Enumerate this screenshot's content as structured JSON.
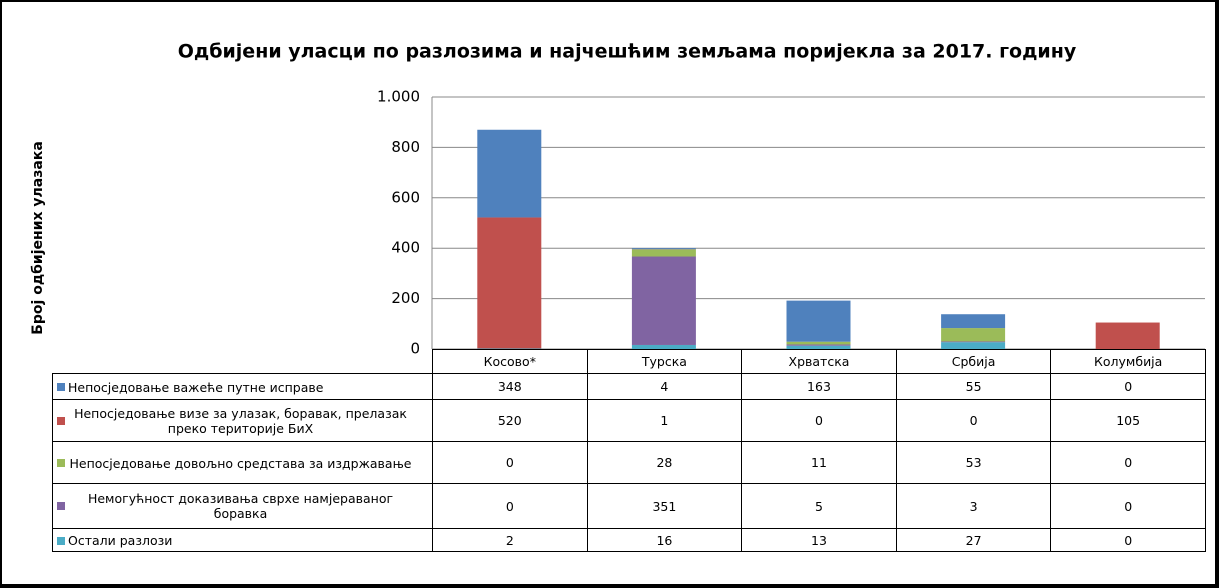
{
  "chart_data": {
    "type": "bar",
    "stacked": true,
    "title": "Одбијени уласци по разлозима и најчешћим земљама поријекла за  2017. годину",
    "y_label": "Број одбијених улазака",
    "categories": [
      "Косово*",
      "Турска",
      "Хрватска",
      "Србија",
      "Колумбија"
    ],
    "series": [
      {
        "name": "Непосједовање важеће путне исправе",
        "color": "#4f81bd",
        "values": [
          348,
          4,
          163,
          55,
          0
        ]
      },
      {
        "name": "Непосједовање визе за улазак, боравак, прелазак преко територије БиХ",
        "color": "#c0504d",
        "values": [
          520,
          1,
          0,
          0,
          105
        ]
      },
      {
        "name": "Непосједовање довољно средстава за издржавање",
        "color": "#9bbb59",
        "values": [
          0,
          28,
          11,
          53,
          0
        ]
      },
      {
        "name": "Немогућност доказивања сврхе намјераваног  боравка",
        "color": "#8064a2",
        "values": [
          0,
          351,
          5,
          3,
          0
        ]
      },
      {
        "name": "Остали разлози",
        "color": "#4bacc6",
        "values": [
          2,
          16,
          13,
          27,
          0
        ]
      }
    ],
    "ylim": [
      0,
      1000
    ],
    "yticks": [
      0,
      200,
      400,
      600,
      800,
      {
        "value": 1000,
        "label": "1.000"
      }
    ],
    "grid": true
  }
}
